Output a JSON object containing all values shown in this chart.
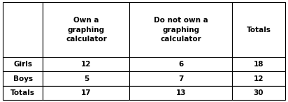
{
  "col_headers": [
    "",
    "Own a\ngraphing\ncalculator",
    "Do not own a\ngraphing\ncalculator",
    "Totals"
  ],
  "rows": [
    [
      "Girls",
      "12",
      "6",
      "18"
    ],
    [
      "Boys",
      "5",
      "7",
      "12"
    ],
    [
      "Totals",
      "17",
      "13",
      "30"
    ]
  ],
  "background_color": "#ffffff",
  "border_color": "#000000",
  "text_color": "#000000",
  "header_fontsize": 7.5,
  "data_fontsize": 7.5,
  "fig_width": 4.12,
  "fig_height": 1.46,
  "dpi": 100
}
